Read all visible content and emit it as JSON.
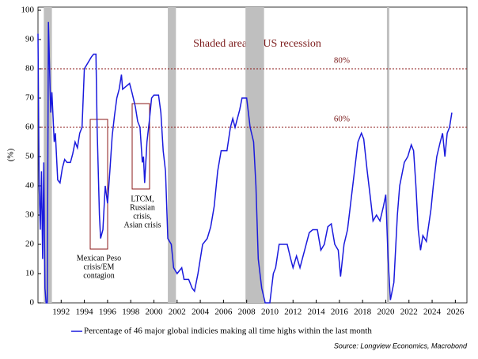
{
  "chart_data": {
    "type": "line",
    "y_label": "(%)",
    "annotation": "Shaded areas = US recession",
    "source": "Source: Longview Economics, Macrobond",
    "xlim": [
      1990,
      2027
    ],
    "xticks": [
      1992,
      1994,
      1996,
      1998,
      2000,
      2002,
      2004,
      2006,
      2008,
      2010,
      2012,
      2014,
      2016,
      2018,
      2020,
      2022,
      2024,
      2026
    ],
    "ylim": [
      0,
      100
    ],
    "yticks": [
      0,
      10,
      20,
      30,
      40,
      50,
      60,
      70,
      80,
      90,
      100
    ],
    "shaded_periods": [
      [
        1990.5,
        1991.2
      ],
      [
        2001.2,
        2001.9
      ],
      [
        2007.9,
        2009.5
      ],
      [
        2020.1,
        2020.3
      ]
    ],
    "shade_color": "#bfbfbf",
    "reference_lines": [
      {
        "value": 80,
        "label": "80%"
      },
      {
        "value": 60,
        "label": "60%"
      }
    ],
    "reference_color": "#8b1a1a",
    "crisis_notes": [
      {
        "lines": [
          "Mexican Peso",
          "crisis/EM",
          "contagion"
        ]
      },
      {
        "lines": [
          "LTCM,",
          "Russian",
          "crisis,",
          "Asian crisis"
        ]
      }
    ],
    "x": [
      1990.0,
      1990.1,
      1990.2,
      1990.3,
      1990.4,
      1990.5,
      1990.6,
      1990.7,
      1990.8,
      1990.9,
      1991.0,
      1991.1,
      1991.2,
      1991.4,
      1991.5,
      1991.7,
      1991.9,
      1992.1,
      1992.3,
      1992.5,
      1992.8,
      1993.0,
      1993.2,
      1993.4,
      1993.6,
      1993.8,
      1994.0,
      1994.3,
      1994.6,
      1994.8,
      1995.0,
      1995.1,
      1995.3,
      1995.4,
      1995.6,
      1995.8,
      1996.0,
      1996.2,
      1996.4,
      1996.6,
      1996.8,
      1997.0,
      1997.2,
      1997.3,
      1997.6,
      1997.9,
      1998.1,
      1998.4,
      1998.6,
      1998.8,
      1999.0,
      1999.1,
      1999.2,
      1999.4,
      1999.6,
      1999.8,
      2000.0,
      2000.4,
      2000.6,
      2000.8,
      2001.0,
      2001.2,
      2001.5,
      2001.7,
      2002.0,
      2002.4,
      2002.6,
      2003.0,
      2003.3,
      2003.5,
      2003.8,
      2004.2,
      2004.6,
      2004.9,
      2005.2,
      2005.5,
      2005.8,
      2006.3,
      2006.6,
      2006.8,
      2007.0,
      2007.4,
      2007.6,
      2008.0,
      2008.3,
      2008.6,
      2008.8,
      2009.0,
      2009.3,
      2009.6,
      2010.0,
      2010.3,
      2010.5,
      2010.8,
      2011.0,
      2011.5,
      2011.8,
      2012.0,
      2012.3,
      2012.6,
      2013.0,
      2013.4,
      2013.7,
      2014.1,
      2014.4,
      2014.7,
      2015.0,
      2015.3,
      2015.6,
      2015.9,
      2016.1,
      2016.4,
      2016.7,
      2017.0,
      2017.3,
      2017.6,
      2017.9,
      2018.1,
      2018.4,
      2018.7,
      2018.9,
      2019.2,
      2019.5,
      2019.8,
      2020.0,
      2020.2,
      2020.4,
      2020.7,
      2021.0,
      2021.2,
      2021.6,
      2021.9,
      2022.2,
      2022.4,
      2022.6,
      2022.8,
      2023.0,
      2023.2,
      2023.5,
      2023.9,
      2024.1,
      2024.4,
      2024.7,
      2024.9,
      2025.1,
      2025.3,
      2025.5,
      2025.7
    ],
    "series": [
      {
        "name": "Percentage of 46 major global indicies making all time highs within the last month",
        "color": "#1a1add",
        "values": [
          92,
          40,
          25,
          45,
          15,
          48,
          5,
          0,
          0,
          96,
          80,
          65,
          72,
          55,
          58,
          42,
          41,
          46,
          49,
          48,
          48,
          51,
          55,
          53,
          58,
          60,
          80,
          82,
          84,
          85,
          85,
          60,
          30,
          22,
          25,
          40,
          34,
          45,
          57,
          64,
          70,
          73,
          78,
          73,
          74,
          75,
          72,
          67,
          62,
          60,
          48,
          50,
          41,
          55,
          62,
          70,
          71,
          71,
          65,
          52,
          45,
          22,
          20,
          12,
          10,
          12,
          8,
          8,
          5,
          4,
          10,
          20,
          22,
          26,
          33,
          45,
          52,
          52,
          60,
          63,
          60,
          66,
          70,
          70,
          60,
          55,
          40,
          15,
          5,
          0,
          0,
          10,
          12,
          20,
          20,
          20,
          15,
          12,
          16,
          12,
          18,
          24,
          25,
          25,
          18,
          20,
          26,
          27,
          20,
          18,
          9,
          20,
          25,
          35,
          45,
          55,
          58,
          56,
          45,
          35,
          28,
          30,
          28,
          33,
          37,
          15,
          1,
          7,
          30,
          40,
          48,
          50,
          54,
          52,
          40,
          25,
          18,
          23,
          21,
          32,
          40,
          50,
          55,
          58,
          50,
          58,
          60,
          65
        ]
      }
    ]
  }
}
